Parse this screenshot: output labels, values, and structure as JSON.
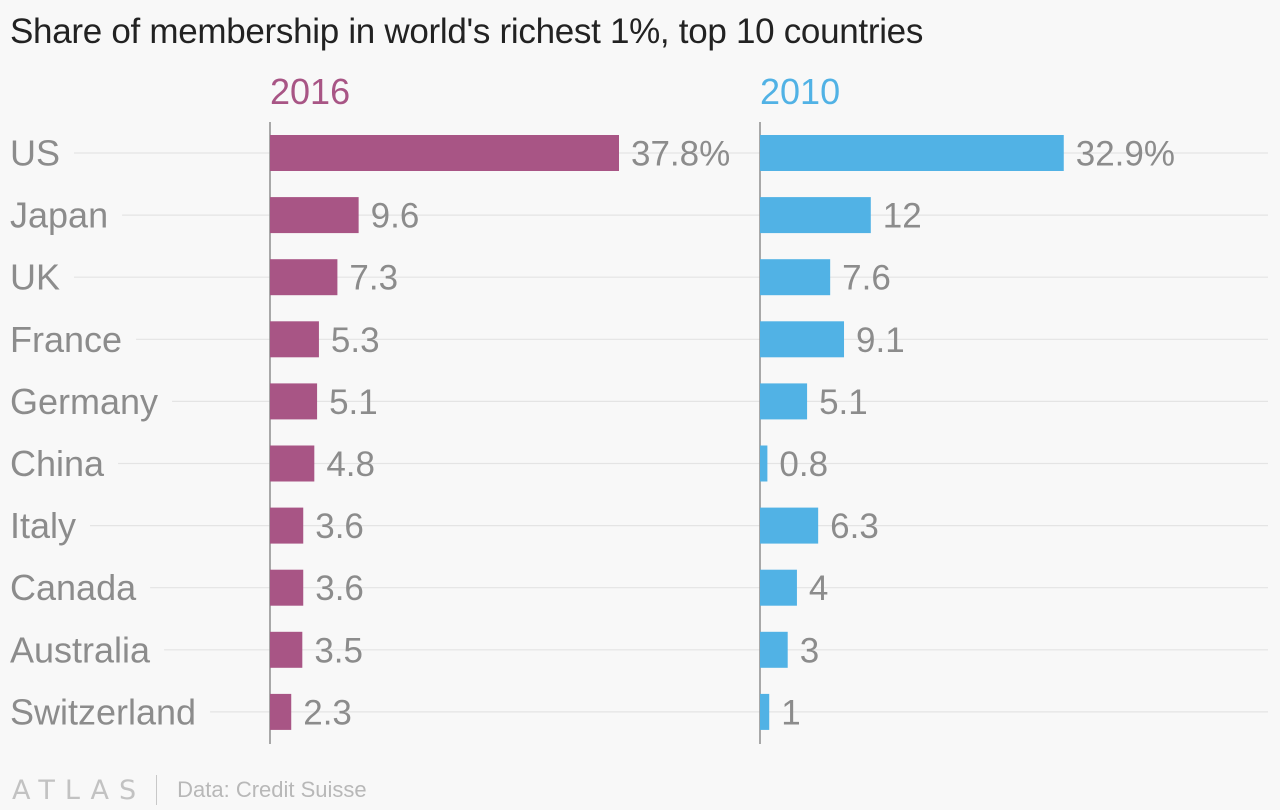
{
  "chart_data": {
    "type": "bar",
    "orientation": "horizontal",
    "layout": "small-multiples",
    "title": "Share of membership in world's richest 1%, top 10 countries",
    "categories": [
      "US",
      "Japan",
      "UK",
      "France",
      "Germany",
      "China",
      "Italy",
      "Canada",
      "Australia",
      "Switzerland"
    ],
    "series": [
      {
        "name": "2016",
        "color": "#a85585",
        "values": [
          37.8,
          9.6,
          7.3,
          5.3,
          5.1,
          4.8,
          3.6,
          3.6,
          3.5,
          2.3
        ],
        "labels": [
          "37.8%",
          "9.6",
          "7.3",
          "5.3",
          "5.1",
          "4.8",
          "3.6",
          "3.6",
          "3.5",
          "2.3"
        ]
      },
      {
        "name": "2010",
        "color": "#51b2e5",
        "values": [
          32.9,
          12,
          7.6,
          9.1,
          5.1,
          0.8,
          6.3,
          4,
          3,
          1
        ],
        "labels": [
          "32.9%",
          "12",
          "7.6",
          "9.1",
          "5.1",
          "0.8",
          "6.3",
          "4",
          "3",
          "1"
        ]
      }
    ],
    "grid": true,
    "legend": "panel headers"
  },
  "footer": {
    "logo_text": "ATLAS",
    "source": "Data: Credit Suisse"
  },
  "colors": {
    "background": "#f8f8f8",
    "title": "#222222",
    "category_label": "#8c8c8c",
    "value_label": "#8c8c8c",
    "gridline": "#e4e4e4",
    "axis": "#8e8e8e"
  }
}
